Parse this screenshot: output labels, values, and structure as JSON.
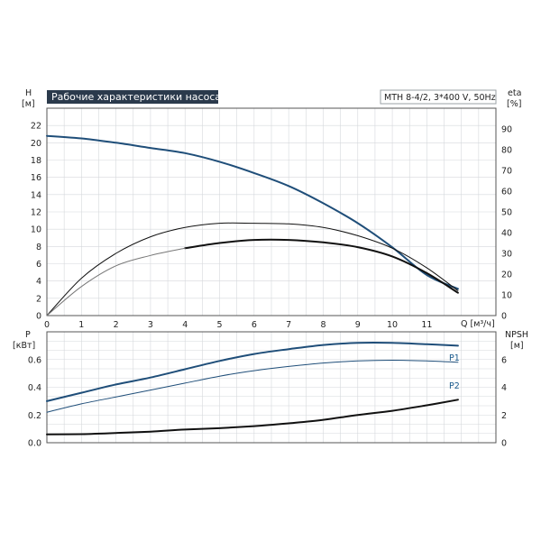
{
  "chart_data": [
    {
      "type": "line",
      "title": "Рабочие характеристики насоса",
      "model": "MTH 8-4/2, 3*400 V, 50Hz",
      "ylabel_left": "H",
      "ylabel_left_unit": "[м]",
      "ylabel_right": "eta",
      "ylabel_right_unit": "[%]",
      "xlabel": "Q [м³/ч]",
      "xlim": [
        0,
        13
      ],
      "ylim_left": [
        0,
        24
      ],
      "ylim_right": [
        0,
        100
      ],
      "x_ticks": [
        0,
        1,
        2,
        3,
        4,
        5,
        6,
        7,
        8,
        9,
        10,
        11
      ],
      "y_ticks_left": [
        0,
        2,
        4,
        6,
        8,
        10,
        12,
        14,
        16,
        18,
        20,
        22
      ],
      "y_ticks_right": [
        0,
        10,
        20,
        30,
        40,
        50,
        60,
        70,
        80,
        90
      ],
      "grid": true,
      "series": [
        {
          "color": "#1f4e79",
          "width": 2,
          "x": [
            0,
            1,
            2,
            3,
            4,
            5,
            6,
            7,
            8,
            9,
            10,
            11,
            11.9
          ],
          "y": [
            20.8,
            20.5,
            20.0,
            19.4,
            18.8,
            17.8,
            16.5,
            15.0,
            13.0,
            10.7,
            7.9,
            4.7,
            3.1
          ]
        },
        {
          "color": "#111111",
          "width": 1,
          "axis": "right",
          "x": [
            0,
            1,
            2,
            3,
            4,
            5,
            6,
            7,
            8,
            9,
            10,
            11,
            11.9
          ],
          "y": [
            0,
            18,
            30,
            38,
            42.5,
            44.5,
            44.5,
            44.2,
            42.5,
            38.5,
            32.5,
            23,
            12
          ]
        },
        {
          "color": "#111111",
          "width": 2,
          "axis": "right",
          "x": [
            4,
            5,
            6,
            7,
            8,
            9,
            10,
            11,
            11.9
          ],
          "y": [
            32.5,
            35,
            36.5,
            36.5,
            35.3,
            33,
            28.5,
            20.5,
            11
          ]
        },
        {
          "color": "#777777",
          "width": 1,
          "axis": "right",
          "x": [
            0,
            1,
            2,
            3,
            4
          ],
          "y": [
            0,
            14,
            24,
            29,
            32.5
          ]
        }
      ]
    },
    {
      "type": "line",
      "ylabel_left": "P",
      "ylabel_left_unit": "[кВт]",
      "ylabel_right": "NPSH",
      "ylabel_right_unit": "[м]",
      "xlim": [
        0,
        13
      ],
      "ylim_left": [
        0,
        0.8
      ],
      "ylim_right": [
        0,
        8
      ],
      "y_ticks_left": [
        0.0,
        0.2,
        0.4,
        0.6
      ],
      "y_ticks_left_labels": [
        "0.0",
        "0.2",
        "0.4",
        "0.6"
      ],
      "y_ticks_right": [
        0,
        2,
        4,
        6
      ],
      "grid": true,
      "series": [
        {
          "name": "P1",
          "color": "#1f4e79",
          "width": 2,
          "x": [
            0,
            1,
            2,
            3,
            4,
            5,
            6,
            7,
            8,
            9,
            10,
            11,
            11.9
          ],
          "y": [
            0.3,
            0.36,
            0.42,
            0.47,
            0.53,
            0.59,
            0.64,
            0.675,
            0.705,
            0.72,
            0.72,
            0.71,
            0.7
          ]
        },
        {
          "name": "P2",
          "color": "#1f4e79",
          "width": 1,
          "x": [
            0,
            1,
            2,
            3,
            4,
            5,
            6,
            7,
            8,
            9,
            10,
            11,
            11.9
          ],
          "y": [
            0.22,
            0.28,
            0.33,
            0.38,
            0.43,
            0.48,
            0.52,
            0.55,
            0.575,
            0.59,
            0.595,
            0.59,
            0.58
          ]
        },
        {
          "color": "#111111",
          "width": 2,
          "axis": "right",
          "x": [
            0,
            1,
            2,
            3,
            4,
            5,
            6,
            7,
            8,
            9,
            10,
            11,
            11.9
          ],
          "y": [
            0.6,
            0.62,
            0.7,
            0.8,
            0.95,
            1.05,
            1.2,
            1.4,
            1.65,
            2.0,
            2.3,
            2.7,
            3.1
          ]
        }
      ]
    }
  ]
}
